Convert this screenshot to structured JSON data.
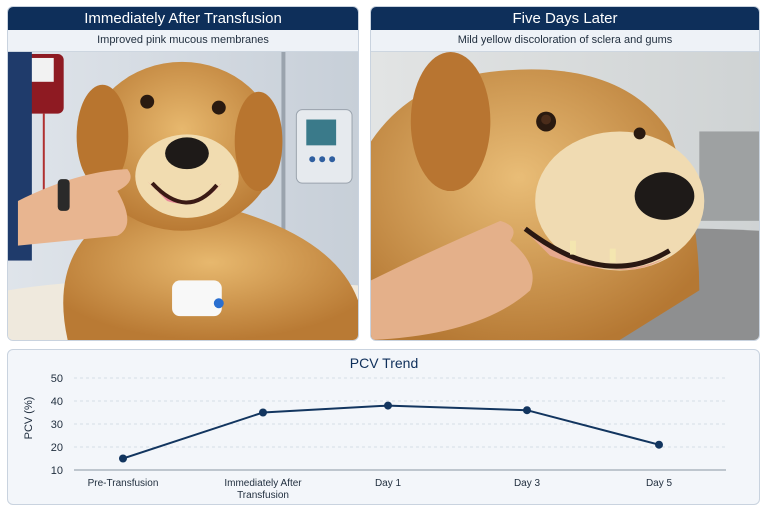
{
  "panels": [
    {
      "title": "Immediately After Transfusion",
      "caption": "Improved pink mucous membranes"
    },
    {
      "title": "Five Days Later",
      "caption": "Mild yellow discoloration of sclera and gums"
    }
  ],
  "colors": {
    "header": "#0e2f5a",
    "line": "#12355f",
    "grid": "#d5dde6",
    "gum_pink": "#e88a9a",
    "gum_yellowish": "#e6a98f"
  },
  "chart_data": {
    "type": "line",
    "title": "PCV Trend",
    "xlabel": "",
    "ylabel": "PCV (%)",
    "categories": [
      "Pre-Transfusion",
      "Immediately After Transfusion",
      "Day 1",
      "Day 3",
      "Day 5"
    ],
    "category_lines": [
      [
        "Pre-Transfusion"
      ],
      [
        "Immediately After",
        "Transfusion"
      ],
      [
        "Day 1"
      ],
      [
        "Day 3"
      ],
      [
        "Day 5"
      ]
    ],
    "values": [
      15,
      35,
      38,
      36,
      21
    ],
    "ylim": [
      10,
      50
    ],
    "yticks": [
      10,
      20,
      30,
      40,
      50
    ],
    "grid": true
  }
}
